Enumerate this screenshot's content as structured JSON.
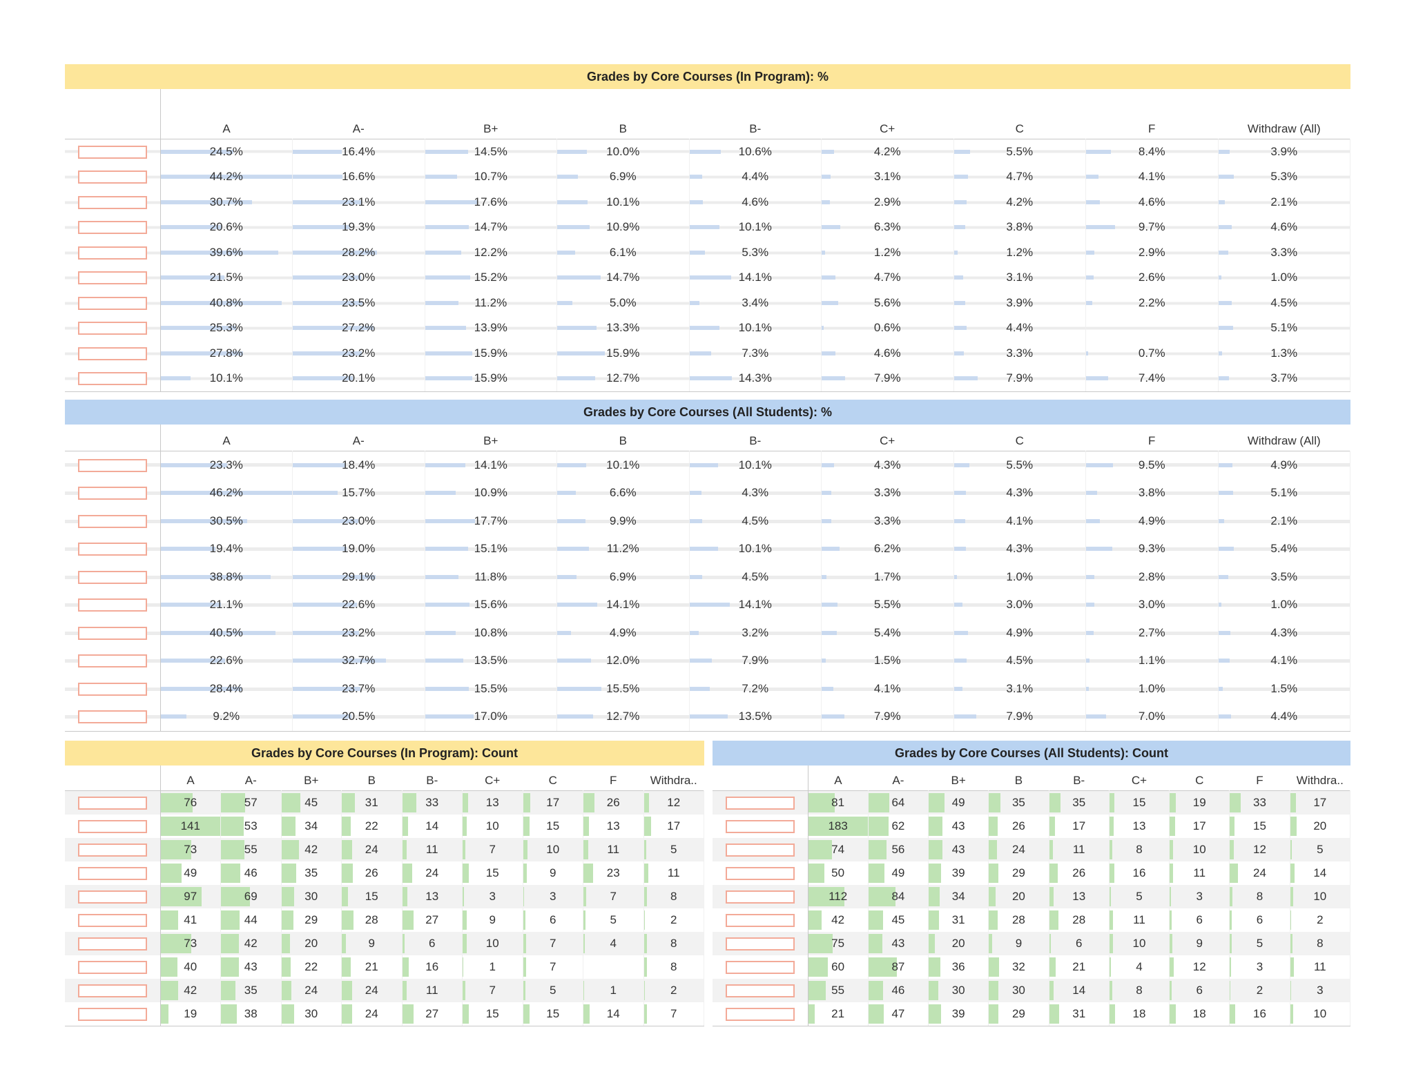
{
  "chart_data": [
    {
      "type": "table",
      "title": "Grades by Core Courses (In Program): %",
      "columns": [
        "A",
        "A-",
        "B+",
        "B",
        "B-",
        "C+",
        "C",
        "F",
        "Withdraw (All)"
      ],
      "rows": [
        [
          "24.5%",
          "16.4%",
          "14.5%",
          "10.0%",
          "10.6%",
          "4.2%",
          "5.5%",
          "8.4%",
          "3.9%"
        ],
        [
          "44.2%",
          "16.6%",
          "10.7%",
          "6.9%",
          "4.4%",
          "3.1%",
          "4.7%",
          "4.1%",
          "5.3%"
        ],
        [
          "30.7%",
          "23.1%",
          "17.6%",
          "10.1%",
          "4.6%",
          "2.9%",
          "4.2%",
          "4.6%",
          "2.1%"
        ],
        [
          "20.6%",
          "19.3%",
          "14.7%",
          "10.9%",
          "10.1%",
          "6.3%",
          "3.8%",
          "9.7%",
          "4.6%"
        ],
        [
          "39.6%",
          "28.2%",
          "12.2%",
          "6.1%",
          "5.3%",
          "1.2%",
          "1.2%",
          "2.9%",
          "3.3%"
        ],
        [
          "21.5%",
          "23.0%",
          "15.2%",
          "14.7%",
          "14.1%",
          "4.7%",
          "3.1%",
          "2.6%",
          "1.0%"
        ],
        [
          "40.8%",
          "23.5%",
          "11.2%",
          "5.0%",
          "3.4%",
          "5.6%",
          "3.9%",
          "2.2%",
          "4.5%"
        ],
        [
          "25.3%",
          "27.2%",
          "13.9%",
          "13.3%",
          "10.1%",
          "0.6%",
          "4.4%",
          "",
          "5.1%"
        ],
        [
          "27.8%",
          "23.2%",
          "15.9%",
          "15.9%",
          "7.3%",
          "4.6%",
          "3.3%",
          "0.7%",
          "1.3%"
        ],
        [
          "10.1%",
          "20.1%",
          "15.9%",
          "12.7%",
          "14.3%",
          "7.9%",
          "7.9%",
          "7.4%",
          "3.7%"
        ]
      ],
      "header_color": "#fde69a",
      "bar_color": "#c5d7ef"
    },
    {
      "type": "table",
      "title": "Grades by Core Courses (All Students): %",
      "columns": [
        "A",
        "A-",
        "B+",
        "B",
        "B-",
        "C+",
        "C",
        "F",
        "Withdraw (All)"
      ],
      "rows": [
        [
          "23.3%",
          "18.4%",
          "14.1%",
          "10.1%",
          "10.1%",
          "4.3%",
          "5.5%",
          "9.5%",
          "4.9%"
        ],
        [
          "46.2%",
          "15.7%",
          "10.9%",
          "6.6%",
          "4.3%",
          "3.3%",
          "4.3%",
          "3.8%",
          "5.1%"
        ],
        [
          "30.5%",
          "23.0%",
          "17.7%",
          "9.9%",
          "4.5%",
          "3.3%",
          "4.1%",
          "4.9%",
          "2.1%"
        ],
        [
          "19.4%",
          "19.0%",
          "15.1%",
          "11.2%",
          "10.1%",
          "6.2%",
          "4.3%",
          "9.3%",
          "5.4%"
        ],
        [
          "38.8%",
          "29.1%",
          "11.8%",
          "6.9%",
          "4.5%",
          "1.7%",
          "1.0%",
          "2.8%",
          "3.5%"
        ],
        [
          "21.1%",
          "22.6%",
          "15.6%",
          "14.1%",
          "14.1%",
          "5.5%",
          "3.0%",
          "3.0%",
          "1.0%"
        ],
        [
          "40.5%",
          "23.2%",
          "10.8%",
          "4.9%",
          "3.2%",
          "5.4%",
          "4.9%",
          "2.7%",
          "4.3%"
        ],
        [
          "22.6%",
          "32.7%",
          "13.5%",
          "12.0%",
          "7.9%",
          "1.5%",
          "4.5%",
          "1.1%",
          "4.1%"
        ],
        [
          "28.4%",
          "23.7%",
          "15.5%",
          "15.5%",
          "7.2%",
          "4.1%",
          "3.1%",
          "1.0%",
          "1.5%"
        ],
        [
          "9.2%",
          "20.5%",
          "17.0%",
          "12.7%",
          "13.5%",
          "7.9%",
          "7.9%",
          "7.0%",
          "4.4%"
        ]
      ],
      "header_color": "#b9d3f1",
      "bar_color": "#c5d7ef"
    },
    {
      "type": "table",
      "title": "Grades by Core Courses (In Program): Count",
      "columns": [
        "A",
        "A-",
        "B+",
        "B",
        "B-",
        "C+",
        "C",
        "F",
        "Withdra.."
      ],
      "rows": [
        [
          "76",
          "57",
          "45",
          "31",
          "33",
          "13",
          "17",
          "26",
          "12"
        ],
        [
          "141",
          "53",
          "34",
          "22",
          "14",
          "10",
          "15",
          "13",
          "17"
        ],
        [
          "73",
          "55",
          "42",
          "24",
          "11",
          "7",
          "10",
          "11",
          "5"
        ],
        [
          "49",
          "46",
          "35",
          "26",
          "24",
          "15",
          "9",
          "23",
          "11"
        ],
        [
          "97",
          "69",
          "30",
          "15",
          "13",
          "3",
          "3",
          "7",
          "8"
        ],
        [
          "41",
          "44",
          "29",
          "28",
          "27",
          "9",
          "6",
          "5",
          "2"
        ],
        [
          "73",
          "42",
          "20",
          "9",
          "6",
          "10",
          "7",
          "4",
          "8"
        ],
        [
          "40",
          "43",
          "22",
          "21",
          "16",
          "1",
          "7",
          "",
          "8"
        ],
        [
          "42",
          "35",
          "24",
          "24",
          "11",
          "7",
          "5",
          "1",
          "2"
        ],
        [
          "19",
          "38",
          "30",
          "24",
          "27",
          "15",
          "15",
          "14",
          "7"
        ]
      ],
      "header_color": "#fde69a",
      "bar_color": "#bfe3b4"
    },
    {
      "type": "table",
      "title": "Grades by Core Courses (All Students): Count",
      "columns": [
        "A",
        "A-",
        "B+",
        "B",
        "B-",
        "C+",
        "C",
        "F",
        "Withdra.."
      ],
      "rows": [
        [
          "81",
          "64",
          "49",
          "35",
          "35",
          "15",
          "19",
          "33",
          "17"
        ],
        [
          "183",
          "62",
          "43",
          "26",
          "17",
          "13",
          "17",
          "15",
          "20"
        ],
        [
          "74",
          "56",
          "43",
          "24",
          "11",
          "8",
          "10",
          "12",
          "5"
        ],
        [
          "50",
          "49",
          "39",
          "29",
          "26",
          "16",
          "11",
          "24",
          "14"
        ],
        [
          "112",
          "84",
          "34",
          "20",
          "13",
          "5",
          "3",
          "8",
          "10"
        ],
        [
          "42",
          "45",
          "31",
          "28",
          "28",
          "11",
          "6",
          "6",
          "2"
        ],
        [
          "75",
          "43",
          "20",
          "9",
          "6",
          "10",
          "9",
          "5",
          "8"
        ],
        [
          "60",
          "87",
          "36",
          "32",
          "21",
          "4",
          "12",
          "3",
          "11"
        ],
        [
          "55",
          "46",
          "30",
          "30",
          "14",
          "8",
          "6",
          "2",
          "3"
        ],
        [
          "21",
          "47",
          "39",
          "29",
          "31",
          "18",
          "18",
          "16",
          "10"
        ]
      ],
      "header_color": "#b9d3f1",
      "bar_color": "#bfe3b4"
    }
  ]
}
